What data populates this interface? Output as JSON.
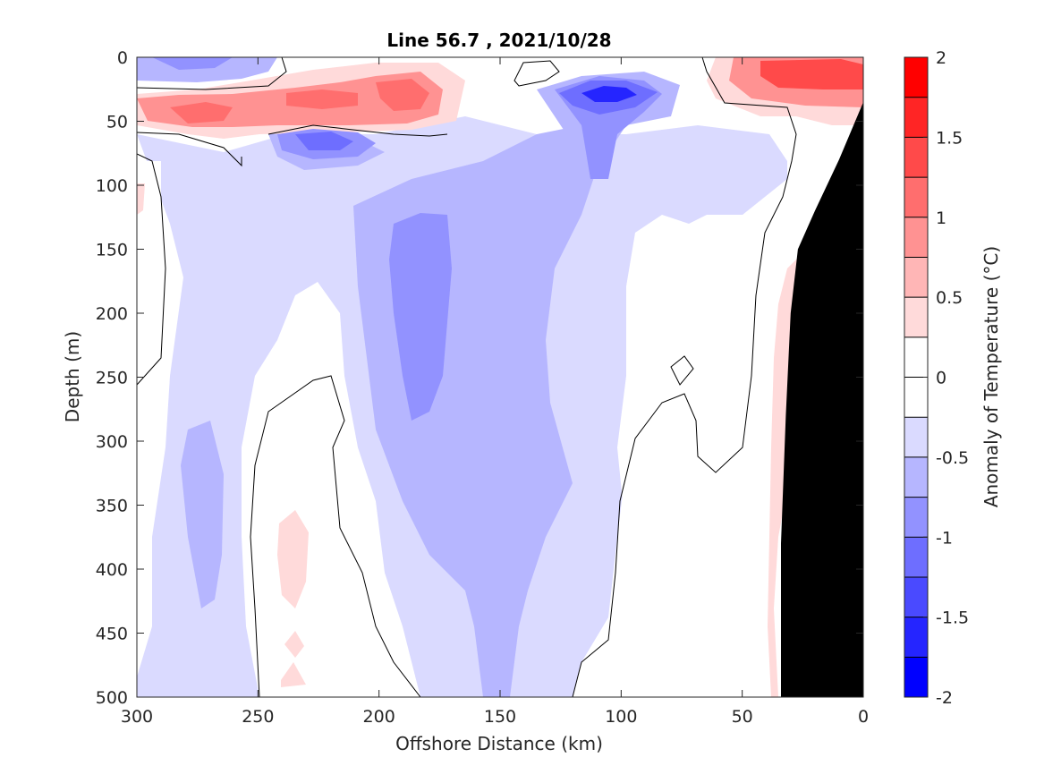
{
  "chart_data": {
    "type": "heatmap",
    "title": "Line 56.7 , 2021/10/28",
    "xlabel": "Offshore Distance (km)",
    "ylabel": "Depth (m)",
    "colorbar_label": "Anomaly of Temperature (°C)",
    "xlim": [
      300,
      0
    ],
    "ylim": [
      0,
      500
    ],
    "xticks": [
      "300",
      "250",
      "200",
      "150",
      "100",
      "50",
      "0"
    ],
    "yticks": [
      "0",
      "50",
      "100",
      "150",
      "200",
      "250",
      "300",
      "350",
      "400",
      "450",
      "500"
    ],
    "colorbar": {
      "range": [
        -2,
        2
      ],
      "levels": [
        -2,
        -1.75,
        -1.5,
        -1.25,
        -1,
        -0.75,
        -0.5,
        -0.25,
        0,
        0.25,
        0.5,
        0.75,
        1,
        1.25,
        1.5,
        1.75,
        2
      ],
      "colors": [
        "#0000ff",
        "#2525ff",
        "#4a4aff",
        "#6e6eff",
        "#9292ff",
        "#b6b6ff",
        "#dadaff",
        "#ffffff",
        "#ffffff",
        "#ffdada",
        "#ffb6b6",
        "#ff9292",
        "#ff6e6e",
        "#ff4a4a",
        "#ff2525",
        "#ff0000"
      ],
      "tick_labels": [
        "2",
        "1.5",
        "1",
        "0.5",
        "0",
        "-0.5",
        "-1",
        "-1.5",
        "-2"
      ]
    },
    "anomaly_features": [
      {
        "x": 270,
        "y": 5,
        "value": -0.7
      },
      {
        "x": 230,
        "y": 32,
        "value": 1.4
      },
      {
        "x": 285,
        "y": 40,
        "value": 1.1
      },
      {
        "x": 185,
        "y": 30,
        "value": 1.1
      },
      {
        "x": 225,
        "y": 65,
        "value": -1.2
      },
      {
        "x": 100,
        "y": 30,
        "value": -1.6
      },
      {
        "x": 20,
        "y": 15,
        "value": 1.4
      },
      {
        "x": 170,
        "y": 200,
        "value": -0.9
      },
      {
        "x": 150,
        "y": 400,
        "value": -0.6
      },
      {
        "x": 270,
        "y": 350,
        "value": -0.6
      },
      {
        "x": 235,
        "y": 400,
        "value": 0.3
      },
      {
        "x": 30,
        "y": 300,
        "value": 0.3
      }
    ],
    "bathymetry": {
      "color": "#000000",
      "points": [
        [
          0,
          35
        ],
        [
          10,
          80
        ],
        [
          20,
          120
        ],
        [
          27,
          150
        ],
        [
          30,
          200
        ],
        [
          32,
          280
        ],
        [
          34,
          380
        ],
        [
          34,
          500
        ],
        [
          0,
          500
        ]
      ]
    }
  }
}
